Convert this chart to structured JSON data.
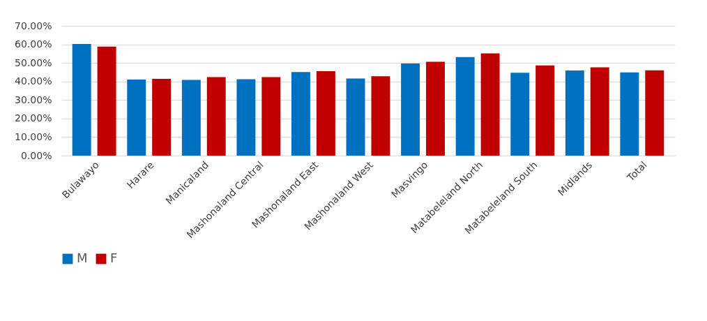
{
  "chart_data": {
    "type": "bar",
    "categories": [
      "Bulawayo",
      "Harare",
      "Manicaland",
      "Mashonaland Central",
      "Mashonaland East",
      "Mashonaland West",
      "Masvingo",
      "Matabeleland North",
      "Matabeleland South",
      "Midlands",
      "Total"
    ],
    "series": [
      {
        "name": "M",
        "color": "#0070c0",
        "values": [
          60.2,
          41.0,
          40.8,
          41.2,
          45.1,
          41.6,
          49.7,
          53.2,
          44.7,
          45.9,
          44.9
        ]
      },
      {
        "name": "F",
        "color": "#c00000",
        "values": [
          58.8,
          41.4,
          42.3,
          42.3,
          45.5,
          42.8,
          50.6,
          55.1,
          48.6,
          47.6,
          46.0
        ]
      }
    ],
    "ylim": [
      0,
      70
    ],
    "yticks": [
      {
        "value": 0,
        "label": "0.00%"
      },
      {
        "value": 10,
        "label": "10.00%"
      },
      {
        "value": 20,
        "label": "20.00%"
      },
      {
        "value": 30,
        "label": "30.00%"
      },
      {
        "value": 40,
        "label": "40.00%"
      },
      {
        "value": 50,
        "label": "50.00%"
      },
      {
        "value": 60,
        "label": "60.00%"
      },
      {
        "value": 70,
        "label": "70.00%"
      }
    ],
    "grid": "y",
    "legend": "bottom"
  }
}
